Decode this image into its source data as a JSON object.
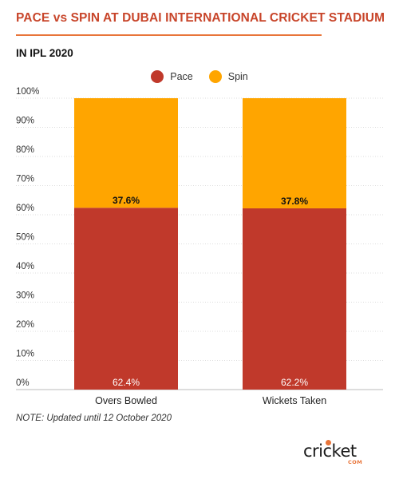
{
  "header": {
    "title": "PACE vs SPIN AT DUBAI INTERNATIONAL CRICKET STADIUM",
    "subtitle": "IN IPL 2020"
  },
  "note": "NOTE: Updated until 12 October 2020",
  "logo": {
    "text": "cricket",
    "sub": "COM"
  },
  "colors": {
    "pace": "#c0392b",
    "spin": "#ffa500",
    "title": "#c8452a"
  },
  "chart_data": {
    "type": "bar",
    "stacked": true,
    "categories": [
      "Overs Bowled",
      "Wickets Taken"
    ],
    "series": [
      {
        "name": "Pace",
        "values": [
          62.4,
          62.2
        ],
        "labels": [
          "62.4%",
          "62.2%"
        ]
      },
      {
        "name": "Spin",
        "values": [
          37.6,
          37.8
        ],
        "labels": [
          "37.6%",
          "37.8%"
        ]
      }
    ],
    "yticks": [
      "0%",
      "10%",
      "20%",
      "30%",
      "40%",
      "50%",
      "60%",
      "70%",
      "80%",
      "90%",
      "100%"
    ],
    "ylim": [
      0,
      100
    ],
    "legend": "top-center",
    "grid": true
  }
}
